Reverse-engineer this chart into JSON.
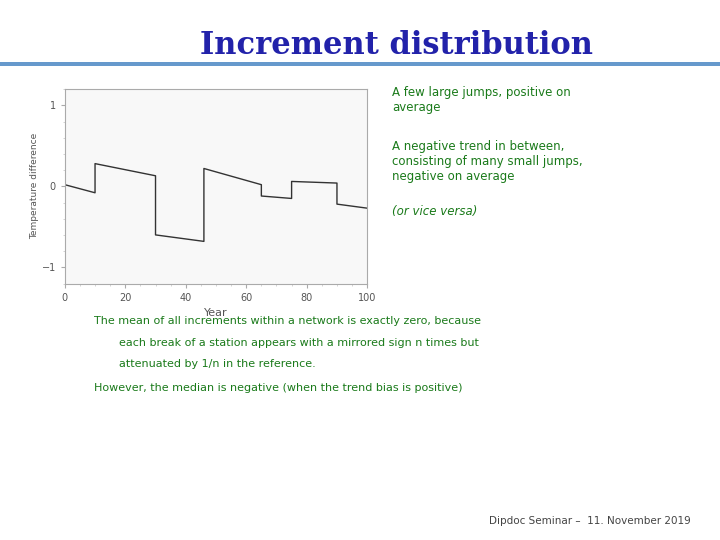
{
  "title": "Increment distribution",
  "title_color": "#2222aa",
  "title_fontsize": 22,
  "bg_color": "#ffffff",
  "plot_bg": "#f8f8f8",
  "xlabel": "Year",
  "ylabel": "Temperature difference",
  "xlim": [
    0,
    100
  ],
  "ylim": [
    -1.2,
    1.2
  ],
  "yticks": [
    -1.0,
    0.0,
    1.0
  ],
  "xticks": [
    0,
    20,
    40,
    60,
    80,
    100
  ],
  "line_color": "#333333",
  "line_width": 1.0,
  "annotation1_text": "A few large jumps, positive on\naverage",
  "annotation2_text": "A negative trend in between,\nconsisting of many small jumps,\nnegative on average",
  "annotation3_text": "(or vice versa)",
  "text1_line1": "The mean of all increments within a network is exactly zero, because",
  "text1_line2": "each break of a station appears with a mirrored sign n times but",
  "text1_line3": "attenuated by 1/n in the reference.",
  "text2": "However, the median is negative (when the trend bias is positive)",
  "footer": "Dipdoc Seminar –  11. November 2019",
  "text_color_green": "#1a7a1a",
  "header_line_color": "#6699cc",
  "x_data": [
    0,
    8,
    10,
    10,
    30,
    30,
    46,
    46,
    65,
    65,
    75,
    75,
    90,
    90,
    100
  ],
  "y_data": [
    0.02,
    -0.06,
    -0.08,
    0.28,
    0.13,
    -0.6,
    -0.68,
    0.22,
    0.02,
    -0.12,
    -0.15,
    0.06,
    0.04,
    -0.22,
    -0.27
  ]
}
